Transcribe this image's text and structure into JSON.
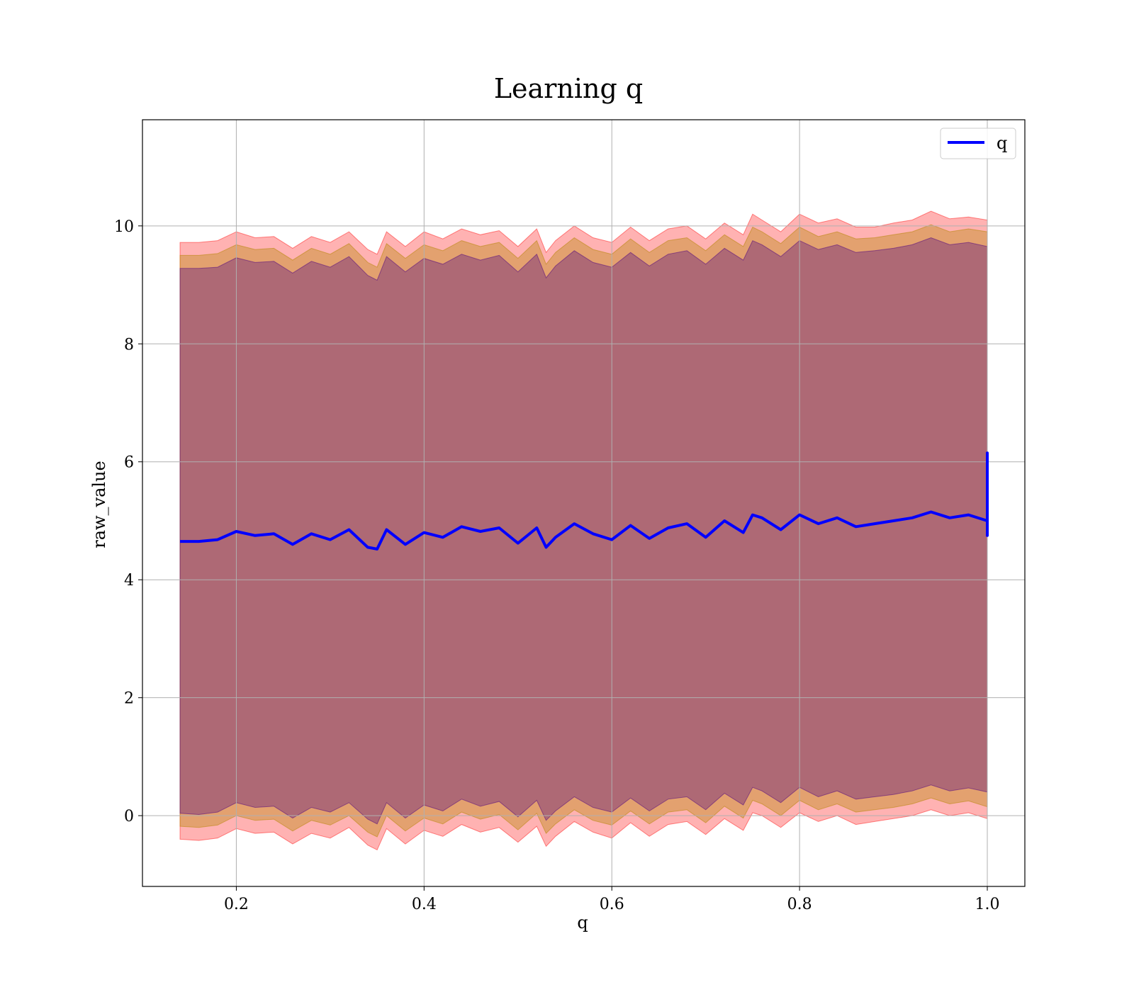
{
  "chart_data": {
    "type": "line",
    "title": "Learning q",
    "xlabel": "q",
    "ylabel": "raw_value",
    "xlim": [
      0.1,
      1.04
    ],
    "ylim": [
      -1.2,
      11.8
    ],
    "x_ticks": [
      0.2,
      0.4,
      0.6,
      0.8,
      1.0
    ],
    "x_tick_labels": [
      "0.2",
      "0.4",
      "0.6",
      "0.8",
      "1.0"
    ],
    "y_ticks": [
      0,
      2,
      4,
      6,
      8,
      10
    ],
    "y_tick_labels": [
      "0",
      "2",
      "4",
      "6",
      "8",
      "10"
    ],
    "grid": true,
    "legend_position": "top-right",
    "series": [
      {
        "name": "q",
        "color": "#0000ff",
        "x": [
          0.14,
          0.16,
          0.18,
          0.2,
          0.22,
          0.24,
          0.26,
          0.28,
          0.3,
          0.32,
          0.34,
          0.35,
          0.36,
          0.38,
          0.4,
          0.42,
          0.44,
          0.46,
          0.48,
          0.5,
          0.52,
          0.53,
          0.54,
          0.56,
          0.58,
          0.6,
          0.62,
          0.64,
          0.66,
          0.68,
          0.7,
          0.72,
          0.74,
          0.75,
          0.76,
          0.78,
          0.8,
          0.82,
          0.84,
          0.86,
          0.88,
          0.9,
          0.92,
          0.94,
          0.96,
          0.98,
          1.0,
          1.0,
          1.0,
          1.0
        ],
        "y": [
          4.65,
          4.65,
          4.68,
          4.82,
          4.75,
          4.78,
          4.6,
          4.78,
          4.68,
          4.85,
          4.55,
          4.52,
          4.85,
          4.6,
          4.8,
          4.72,
          4.9,
          4.82,
          4.88,
          4.62,
          4.88,
          4.55,
          4.72,
          4.95,
          4.78,
          4.68,
          4.92,
          4.7,
          4.88,
          4.95,
          4.72,
          5.0,
          4.8,
          5.1,
          5.05,
          4.85,
          5.1,
          4.95,
          5.05,
          4.9,
          4.95,
          5.0,
          5.05,
          5.15,
          5.05,
          5.1,
          5.0,
          6.15,
          4.75,
          5.05
        ]
      }
    ],
    "bands": [
      {
        "color": "#ff0000",
        "opacity": 0.3,
        "x": [
          0.14,
          0.16,
          0.18,
          0.2,
          0.22,
          0.24,
          0.26,
          0.28,
          0.3,
          0.32,
          0.34,
          0.35,
          0.36,
          0.38,
          0.4,
          0.42,
          0.44,
          0.46,
          0.48,
          0.5,
          0.52,
          0.53,
          0.54,
          0.56,
          0.58,
          0.6,
          0.62,
          0.64,
          0.66,
          0.68,
          0.7,
          0.72,
          0.74,
          0.75,
          0.76,
          0.78,
          0.8,
          0.82,
          0.84,
          0.86,
          0.88,
          0.9,
          0.92,
          0.94,
          0.96,
          0.98,
          1.0
        ],
        "upper": [
          9.72,
          9.72,
          9.75,
          9.9,
          9.8,
          9.82,
          9.62,
          9.82,
          9.72,
          9.9,
          9.6,
          9.52,
          9.9,
          9.65,
          9.9,
          9.78,
          9.95,
          9.85,
          9.92,
          9.65,
          9.95,
          9.55,
          9.75,
          10.0,
          9.8,
          9.72,
          9.98,
          9.75,
          9.95,
          10.0,
          9.78,
          10.05,
          9.85,
          10.2,
          10.1,
          9.9,
          10.2,
          10.05,
          10.12,
          9.98,
          9.98,
          10.05,
          10.1,
          10.25,
          10.12,
          10.15,
          10.1
        ],
        "lower": [
          -0.4,
          -0.42,
          -0.38,
          -0.22,
          -0.3,
          -0.28,
          -0.48,
          -0.3,
          -0.38,
          -0.2,
          -0.5,
          -0.58,
          -0.22,
          -0.48,
          -0.25,
          -0.35,
          -0.15,
          -0.28,
          -0.2,
          -0.45,
          -0.18,
          -0.52,
          -0.35,
          -0.1,
          -0.28,
          -0.38,
          -0.12,
          -0.35,
          -0.15,
          -0.1,
          -0.32,
          -0.05,
          -0.25,
          0.05,
          0.0,
          -0.2,
          0.05,
          -0.1,
          0.0,
          -0.15,
          -0.1,
          -0.05,
          0.0,
          0.1,
          0.0,
          0.05,
          -0.05
        ]
      },
      {
        "color": "#b8860b",
        "opacity": 0.4,
        "x": [
          0.14,
          0.16,
          0.18,
          0.2,
          0.22,
          0.24,
          0.26,
          0.28,
          0.3,
          0.32,
          0.34,
          0.35,
          0.36,
          0.38,
          0.4,
          0.42,
          0.44,
          0.46,
          0.48,
          0.5,
          0.52,
          0.53,
          0.54,
          0.56,
          0.58,
          0.6,
          0.62,
          0.64,
          0.66,
          0.68,
          0.7,
          0.72,
          0.74,
          0.75,
          0.76,
          0.78,
          0.8,
          0.82,
          0.84,
          0.86,
          0.88,
          0.9,
          0.92,
          0.94,
          0.96,
          0.98,
          1.0
        ],
        "upper": [
          9.5,
          9.5,
          9.53,
          9.68,
          9.6,
          9.62,
          9.42,
          9.62,
          9.52,
          9.7,
          9.38,
          9.3,
          9.7,
          9.45,
          9.68,
          9.58,
          9.75,
          9.65,
          9.72,
          9.45,
          9.75,
          9.35,
          9.55,
          9.8,
          9.6,
          9.52,
          9.78,
          9.55,
          9.75,
          9.8,
          9.58,
          9.85,
          9.65,
          9.98,
          9.9,
          9.7,
          9.98,
          9.82,
          9.9,
          9.78,
          9.8,
          9.85,
          9.9,
          10.02,
          9.9,
          9.95,
          9.9
        ],
        "lower": [
          -0.18,
          -0.2,
          -0.16,
          0.0,
          -0.08,
          -0.06,
          -0.26,
          -0.08,
          -0.16,
          0.0,
          -0.28,
          -0.36,
          0.0,
          -0.26,
          -0.04,
          -0.14,
          0.06,
          -0.06,
          0.02,
          -0.24,
          0.04,
          -0.3,
          -0.14,
          0.1,
          -0.08,
          -0.16,
          0.08,
          -0.14,
          0.06,
          0.1,
          -0.12,
          0.16,
          -0.04,
          0.26,
          0.2,
          0.0,
          0.26,
          0.1,
          0.2,
          0.06,
          0.1,
          0.14,
          0.2,
          0.3,
          0.2,
          0.25,
          0.15
        ]
      },
      {
        "color": "#4b0082",
        "opacity": 0.35,
        "x": [
          0.14,
          0.16,
          0.18,
          0.2,
          0.22,
          0.24,
          0.26,
          0.28,
          0.3,
          0.32,
          0.34,
          0.35,
          0.36,
          0.38,
          0.4,
          0.42,
          0.44,
          0.46,
          0.48,
          0.5,
          0.52,
          0.53,
          0.54,
          0.56,
          0.58,
          0.6,
          0.62,
          0.64,
          0.66,
          0.68,
          0.7,
          0.72,
          0.74,
          0.75,
          0.76,
          0.78,
          0.8,
          0.82,
          0.84,
          0.86,
          0.88,
          0.9,
          0.92,
          0.94,
          0.96,
          0.98,
          1.0
        ],
        "upper": [
          9.28,
          9.28,
          9.3,
          9.46,
          9.38,
          9.4,
          9.2,
          9.4,
          9.3,
          9.48,
          9.16,
          9.08,
          9.48,
          9.22,
          9.45,
          9.35,
          9.52,
          9.42,
          9.5,
          9.22,
          9.52,
          9.12,
          9.32,
          9.58,
          9.38,
          9.3,
          9.55,
          9.32,
          9.52,
          9.58,
          9.35,
          9.62,
          9.42,
          9.75,
          9.68,
          9.48,
          9.75,
          9.6,
          9.68,
          9.55,
          9.58,
          9.62,
          9.68,
          9.8,
          9.68,
          9.72,
          9.65
        ],
        "lower": [
          0.04,
          0.02,
          0.06,
          0.22,
          0.14,
          0.16,
          -0.04,
          0.14,
          0.06,
          0.22,
          -0.06,
          -0.14,
          0.22,
          -0.04,
          0.18,
          0.08,
          0.28,
          0.16,
          0.24,
          -0.02,
          0.26,
          -0.08,
          0.08,
          0.32,
          0.14,
          0.06,
          0.3,
          0.08,
          0.28,
          0.32,
          0.1,
          0.38,
          0.18,
          0.48,
          0.42,
          0.22,
          0.48,
          0.32,
          0.42,
          0.28,
          0.32,
          0.36,
          0.42,
          0.52,
          0.42,
          0.47,
          0.4
        ]
      }
    ]
  }
}
